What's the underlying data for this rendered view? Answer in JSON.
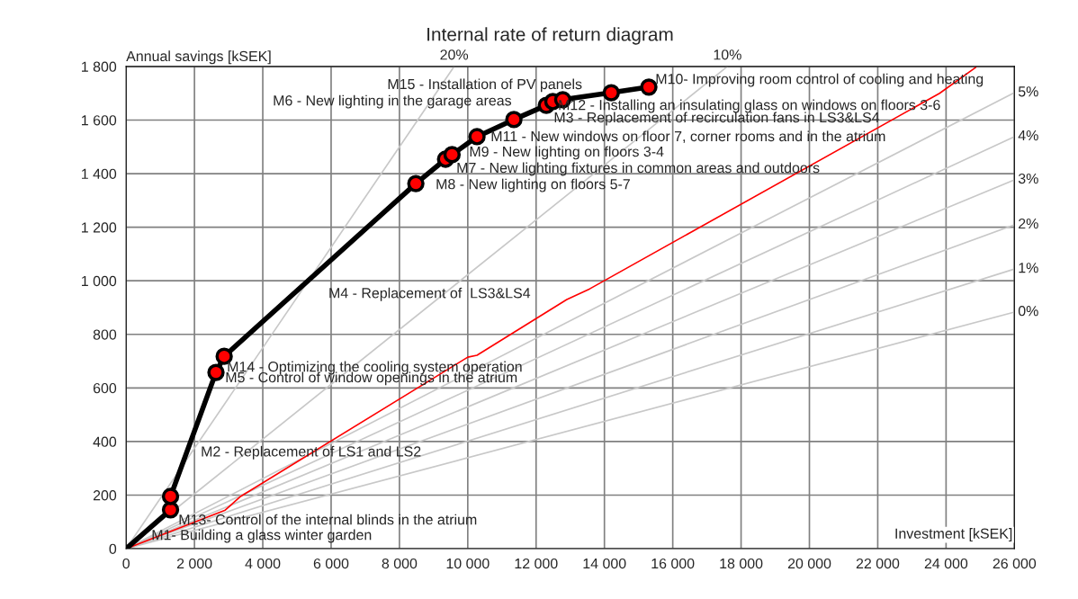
{
  "chart_data": {
    "type": "line",
    "title": "Internal rate of return diagram",
    "xlabel": "Investment [kSEK]",
    "ylabel": "Annual savings [kSEK]",
    "xlim": [
      0,
      26000
    ],
    "ylim": [
      0,
      1800
    ],
    "xticks": [
      0,
      {
        "value": 2000,
        "label": "2 000"
      },
      {
        "value": 4000,
        "label": "4 000"
      },
      {
        "value": 6000,
        "label": "6 000"
      },
      {
        "value": 8000,
        "label": "8 000"
      },
      {
        "value": 10000,
        "label": "10 000"
      },
      {
        "value": 12000,
        "label": "12 000"
      },
      {
        "value": 14000,
        "label": "14 000"
      },
      {
        "value": 16000,
        "label": "16 000"
      },
      {
        "value": 18000,
        "label": "18 000"
      },
      {
        "value": 20000,
        "label": "20 000"
      },
      {
        "value": 22000,
        "label": "22 000"
      },
      {
        "value": 24000,
        "label": "24 000"
      },
      {
        "value": 26000,
        "label": "26 000"
      }
    ],
    "yticks": [
      0,
      200,
      400,
      600,
      800,
      {
        "value": 1000,
        "label": "1 000"
      },
      {
        "value": 1200,
        "label": "1 200"
      },
      {
        "value": 1400,
        "label": "1 400"
      },
      {
        "value": 1600,
        "label": "1 600"
      },
      {
        "value": 1800,
        "label": "1 800"
      }
    ],
    "grid": true,
    "legend": false,
    "marker": "circle",
    "series": [
      {
        "name": "20%",
        "color": "#c8c8c8",
        "marker": "none",
        "x": [
          0,
          9600
        ],
        "values": [
          0,
          1800
        ]
      },
      {
        "name": "10%",
        "color": "#c8c8c8",
        "marker": "none",
        "x": [
          0,
          17600
        ],
        "values": [
          0,
          1800
        ]
      },
      {
        "name": "5%",
        "color": "#c8c8c8",
        "marker": "none",
        "x": [
          0,
          26000
        ],
        "values": [
          0,
          1702
        ]
      },
      {
        "name": "4%",
        "color": "#c8c8c8",
        "marker": "none",
        "x": [
          0,
          26000
        ],
        "values": [
          0,
          1538
        ]
      },
      {
        "name": "3%",
        "color": "#c8c8c8",
        "marker": "none",
        "x": [
          0,
          26000
        ],
        "values": [
          0,
          1377
        ]
      },
      {
        "name": "2%",
        "color": "#c8c8c8",
        "marker": "none",
        "x": [
          0,
          26000
        ],
        "values": [
          0,
          1209
        ]
      },
      {
        "name": "1%",
        "color": "#c8c8c8",
        "marker": "none",
        "x": [
          0,
          26000
        ],
        "values": [
          0,
          1044
        ]
      },
      {
        "name": "0%",
        "color": "#c8c8c8",
        "marker": "none",
        "x": [
          0,
          26000
        ],
        "values": [
          0,
          883
        ]
      },
      {
        "color": "#ff0000",
        "marker": "none",
        "x": [
          0,
          2900,
          3350,
          10000,
          10270,
          12900,
          13570,
          23810,
          24870
        ],
        "values": [
          0,
          144,
          195,
          715,
          722,
          930,
          970,
          1700,
          1797
        ]
      },
      {
        "color": "#000000",
        "colors": [
          null,
          "#ff0000",
          "#ff0000",
          "#ff0000",
          "#ff0000",
          "#ff0000",
          "#ff0000",
          "#ff0000",
          "#ff0000",
          "#ff0000",
          "#ff0000",
          "#ff0000",
          "#ff0000",
          "#ff0000",
          "#ff0000"
        ],
        "x": [
          0,
          1300,
          1300,
          2630,
          2870,
          8480,
          9350,
          9540,
          10270,
          11350,
          12300,
          12490,
          12780,
          14200,
          15300
        ],
        "values": [
          0,
          145,
          195,
          658,
          718,
          1363,
          1454,
          1471,
          1538,
          1602,
          1655,
          1669,
          1676,
          1702,
          1723
        ]
      }
    ],
    "annotations": [
      {
        "text": "M15 - Installation of PV panels",
        "x": 12780,
        "y": 1676
      },
      {
        "text": "M10- Improving room control of cooling and heating",
        "x": 15490,
        "y": 1749
      },
      {
        "text": "M6 - New lighting in the garage areas",
        "x": 12300,
        "y": 1655
      },
      {
        "text": "M12 - Installing an insulating glass on windows on floors 3-6",
        "x": 12640,
        "y": 1652
      },
      {
        "text": "M3 - Replacement of recirculation fans in LS3&LS4",
        "x": 12490,
        "y": 1669
      },
      {
        "text": "M11 - New windows on floor 7, corner rooms and in the atrium",
        "x": 10670,
        "y": 1535
      },
      {
        "text": "M9 - New lighting on floors 3-4",
        "x": 9540,
        "y": 1471
      },
      {
        "text": "M7 - New lighting fixtures in common areas and outdoors",
        "x": 9350,
        "y": 1454
      },
      {
        "text": "M8 - New lighting on floors 5-7",
        "x": 8480,
        "y": 1363
      },
      {
        "text": "M4 - Replacement of  LS3&LS4",
        "x": 5000,
        "y": 963
      },
      {
        "text": "M14 - Optimizing the cooling system operation",
        "x": 2950,
        "y": 675
      },
      {
        "text": "M5 - Control of window openings in the atrium",
        "x": 2900,
        "y": 635
      },
      {
        "text": "M2 - Replacement of LS1 and LS2",
        "x": 2000,
        "y": 439
      },
      {
        "text": "M13- Control of the internal blinds in the atrium",
        "x": 1530,
        "y": 104
      },
      {
        "text": "M1- Building a glass winter garden",
        "x": 740,
        "y": 47
      }
    ]
  }
}
